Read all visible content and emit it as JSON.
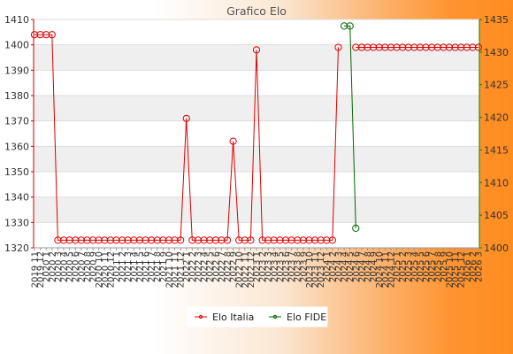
{
  "chart_data": {
    "type": "line",
    "title": "Grafico Elo",
    "categories": [
      "2019 11",
      "2019 12",
      "2020 1",
      "2020 2",
      "2020 3",
      "2020 4",
      "2020 5",
      "2020 6",
      "2020 7",
      "2020 8",
      "2020 9",
      "2020 10",
      "2020 11",
      "2020 12",
      "2021 1",
      "2021 2",
      "2021 3",
      "2021 4",
      "2021 5",
      "2021 6",
      "2021 7",
      "2021 8",
      "2021 9",
      "2021 10",
      "2021 11",
      "2021 12",
      "2022 1",
      "2022 2",
      "2022 3",
      "2022 4",
      "2022 5",
      "2022 6",
      "2022 7",
      "2022 8",
      "2022 9",
      "2022 10",
      "2022 11",
      "2022 12",
      "2023 1",
      "2023 2",
      "2023 3",
      "2023 4",
      "2023 5",
      "2023 6",
      "2023 7",
      "2023 8",
      "2023 9",
      "2023 10",
      "2023 11",
      "2023 12",
      "2024 1",
      "2024 2",
      "2024 3",
      "2024 4",
      "2024 5",
      "2024 6",
      "2024 7",
      "2024 8",
      "2024 9",
      "2024 10",
      "2024 11",
      "2024 12",
      "2025 1",
      "2025 2",
      "2025 3",
      "2025 4",
      "2025 5",
      "2025 6",
      "2025 7",
      "2025 8",
      "2025 9",
      "2025 10",
      "2025 11",
      "2025 12",
      "2026 1",
      "2026 2",
      "2026 3"
    ],
    "series": [
      {
        "name": "Elo Italia",
        "axis": "left",
        "color": "#dd0000",
        "values": [
          1404,
          1404,
          1404,
          1404,
          1323,
          1323,
          1323,
          1323,
          1323,
          1323,
          1323,
          1323,
          1323,
          1323,
          1323,
          1323,
          1323,
          1323,
          1323,
          1323,
          1323,
          1323,
          1323,
          1323,
          1323,
          1323,
          1371,
          1323,
          1323,
          1323,
          1323,
          1323,
          1323,
          1323,
          1362,
          1323,
          1323,
          1323,
          1398,
          1323,
          1323,
          1323,
          1323,
          1323,
          1323,
          1323,
          1323,
          1323,
          1323,
          1323,
          1323,
          1323,
          1399,
          null,
          null,
          1399,
          1399,
          1399,
          1399,
          1399,
          1399,
          1399,
          1399,
          1399,
          1399,
          1399,
          1399,
          1399,
          1399,
          1399,
          1399,
          1399,
          1399,
          1399,
          1399,
          1399,
          1399
        ]
      },
      {
        "name": "Elo FIDE",
        "axis": "right",
        "color": "#006600",
        "values": [
          null,
          null,
          null,
          null,
          null,
          null,
          null,
          null,
          null,
          null,
          null,
          null,
          null,
          null,
          null,
          null,
          null,
          null,
          null,
          null,
          null,
          null,
          null,
          null,
          null,
          null,
          null,
          null,
          null,
          null,
          null,
          null,
          null,
          null,
          null,
          null,
          null,
          null,
          null,
          null,
          null,
          null,
          null,
          null,
          null,
          null,
          null,
          null,
          null,
          null,
          null,
          null,
          null,
          1434,
          1434,
          1403,
          null,
          null,
          null,
          null,
          null,
          null,
          null,
          null,
          null,
          null,
          null,
          null,
          null,
          null,
          null,
          null,
          null,
          null,
          null,
          null,
          null
        ]
      }
    ],
    "y_left": {
      "min": 1320,
      "max": 1410,
      "ticks": [
        1320,
        1330,
        1340,
        1350,
        1360,
        1370,
        1380,
        1390,
        1400,
        1410
      ]
    },
    "y_right": {
      "min": 1400,
      "max": 1435,
      "ticks": [
        1400,
        1405,
        1410,
        1415,
        1420,
        1425,
        1430,
        1435
      ]
    },
    "grid": true,
    "legend_position": "bottom-center",
    "colors": {
      "left_axis": "#cc0000",
      "right_axis": "#008800",
      "band": "#efefef"
    }
  }
}
